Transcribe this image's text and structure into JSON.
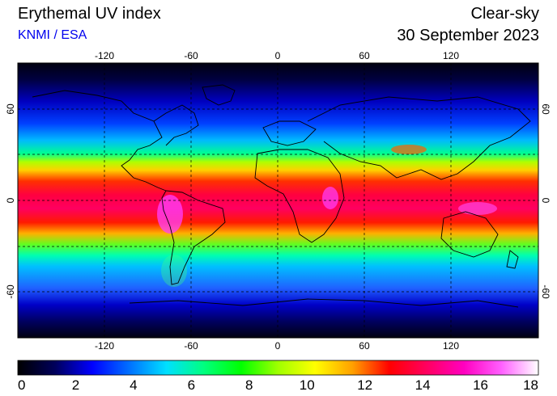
{
  "header": {
    "title": "Erythemal UV index",
    "credit": "KNMI / ESA",
    "sky_condition": "Clear-sky",
    "date": "30 September 2023"
  },
  "map": {
    "projection": "equirectangular",
    "lon_range": [
      -180,
      180
    ],
    "lat_range": [
      -90,
      90
    ],
    "grid": "dashed",
    "lon_ticks": [
      "-120",
      "-60",
      "0",
      "60",
      "120"
    ],
    "lat_ticks": [
      "60",
      "0",
      "-60"
    ]
  },
  "colorbar": {
    "min": 0,
    "max": 18,
    "labels": [
      "0",
      "2",
      "4",
      "6",
      "8",
      "10",
      "12",
      "14",
      "16",
      "18"
    ],
    "stops": [
      "#000000",
      "#00005a",
      "#0000ff",
      "#0070ff",
      "#00e0ff",
      "#00ff80",
      "#00ff00",
      "#a0ff00",
      "#ffff00",
      "#ffa000",
      "#ff0000",
      "#ff0060",
      "#ff00c0",
      "#ff60ff",
      "#ffffff"
    ]
  }
}
